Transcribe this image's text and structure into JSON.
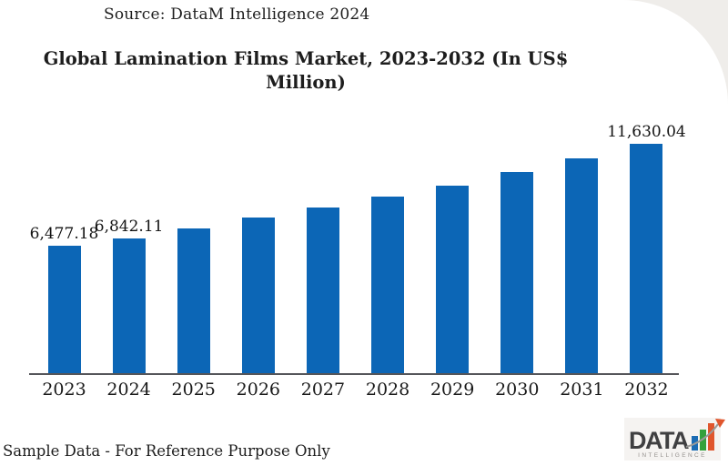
{
  "source_note": "Source: DataM Intelligence 2024",
  "footer_note": "Sample Data - For Reference Purpose Only",
  "title": {
    "line1": "Global Lamination Films Market, 2023-2032 (In US$",
    "line2": "Million)"
  },
  "chart_data": {
    "type": "bar",
    "title": "Global Lamination Films Market, 2023-2032 (In US$ Million)",
    "source": "DataM Intelligence 2024",
    "unit": "US$ Million",
    "categories": [
      "2023",
      "2024",
      "2025",
      "2026",
      "2027",
      "2028",
      "2029",
      "2030",
      "2031",
      "2032"
    ],
    "values": [
      6477.18,
      6842.11,
      7320,
      7880,
      8390,
      8940,
      9500,
      10190,
      10885,
      11630.04
    ],
    "value_labels": [
      "6,477.18",
      "6,842.11",
      null,
      null,
      null,
      null,
      null,
      null,
      null,
      "11,630.04"
    ],
    "xlabel": "",
    "ylabel": "",
    "ylim": [
      0,
      11700
    ],
    "y_axis_visible": false,
    "grid": false,
    "legend": "none",
    "bar_color": "#0c66b6",
    "axis_line_color": "#55565a"
  },
  "logo": {
    "text": "DATA",
    "subtext": "INTELLIGENCE",
    "text_color": "#3f3f41",
    "subtext_color": "#94908d",
    "bar_colors": [
      "#1b6cb4",
      "#33a13c",
      "#e0562d"
    ],
    "swoosh_color": "#9a9a98",
    "arrow_color": "#e0562d"
  }
}
